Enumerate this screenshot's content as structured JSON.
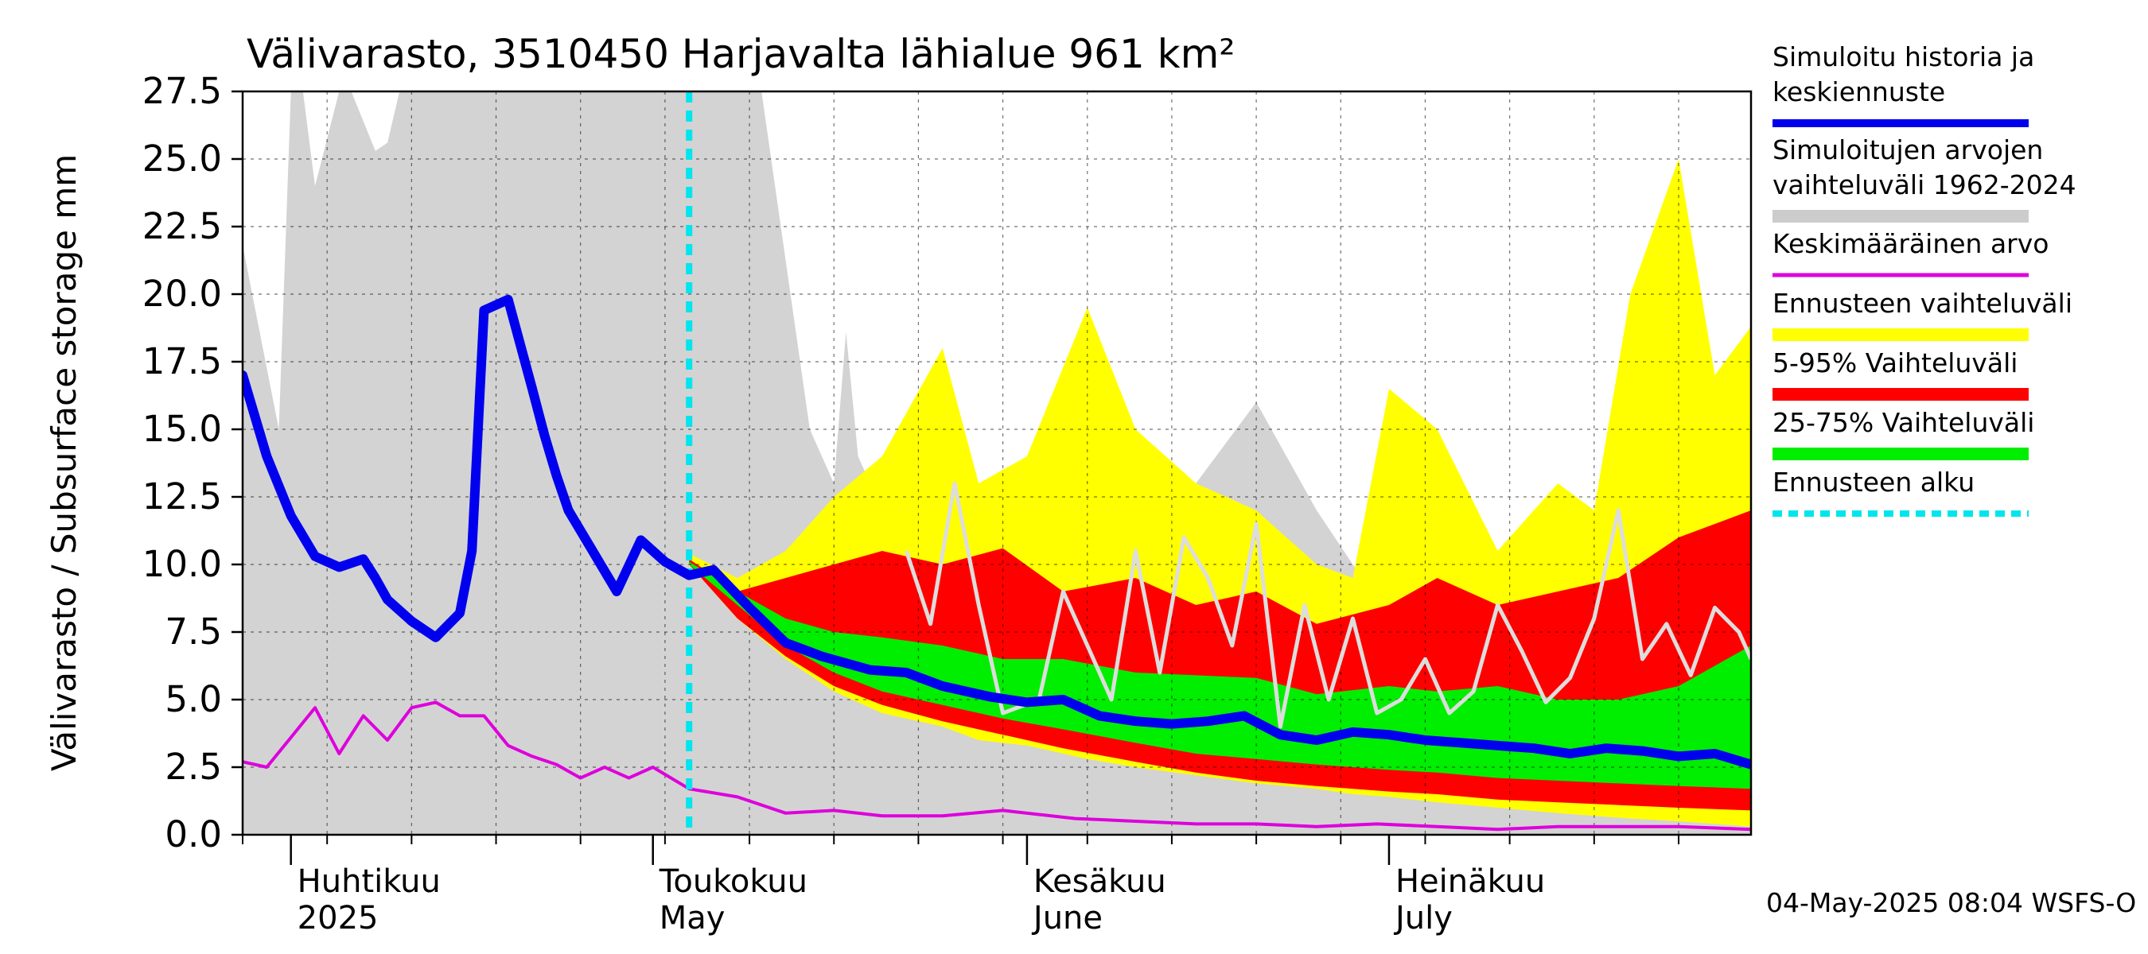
{
  "chart_data": {
    "type": "area",
    "title": "Välivarasto, 3510450 Harjavalta lähialue 961 km²",
    "ylabel": "Välivarasto / Subsurface storage  mm",
    "ylim": [
      0,
      27.5
    ],
    "yticks": [
      "0.0",
      "2.5",
      "5.0",
      "7.5",
      "10.0",
      "12.5",
      "15.0",
      "17.5",
      "20.0",
      "22.5",
      "25.0",
      "27.5"
    ],
    "x_range": [
      "2025-03-28",
      "2025-07-31"
    ],
    "month_labels": [
      {
        "date": "2025-04-01",
        "fi": "Huhtikuu",
        "en": "2025"
      },
      {
        "date": "2025-05-01",
        "fi": "Toukokuu",
        "en": "May"
      },
      {
        "date": "2025-06-01",
        "fi": "Kesäkuu",
        "en": "June"
      },
      {
        "date": "2025-07-01",
        "fi": "Heinäkuu",
        "en": "July"
      }
    ],
    "forecast_start": "2025-05-04",
    "footer": "04-May-2025 08:04 WSFS-O",
    "legend": [
      {
        "label": "Simuloitu historia ja keskiennuste",
        "color": "#0000ee",
        "style": "solid"
      },
      {
        "label": "Simuloitujen arvojen vaihteluväli 1962-2024",
        "color": "#cccccc",
        "style": "solid"
      },
      {
        "label": "Keskimääräinen arvo",
        "color": "#dd00dd",
        "style": "solid"
      },
      {
        "label": "Ennusteen vaihteluväli",
        "color": "#ffff00",
        "style": "solid"
      },
      {
        "label": "5-95% Vaihteluväli",
        "color": "#ff0000",
        "style": "solid"
      },
      {
        "label": "25-75% Vaihteluväli",
        "color": "#00ee00",
        "style": "solid"
      },
      {
        "label": "Ennusteen alku",
        "color": "#00e5ee",
        "style": "dashed"
      }
    ],
    "series": [
      {
        "name": "Simuloitu historia ja keskiennuste",
        "type": "line",
        "color": "#0000ee",
        "x": [
          "2025-03-28",
          "2025-03-30",
          "2025-04-01",
          "2025-04-03",
          "2025-04-05",
          "2025-04-07",
          "2025-04-08",
          "2025-04-09",
          "2025-04-11",
          "2025-04-13",
          "2025-04-15",
          "2025-04-16",
          "2025-04-17",
          "2025-04-19",
          "2025-04-21",
          "2025-04-22",
          "2025-04-23",
          "2025-04-24",
          "2025-04-26",
          "2025-04-28",
          "2025-04-30",
          "2025-05-01",
          "2025-05-02",
          "2025-05-04",
          "2025-05-06",
          "2025-05-09",
          "2025-05-12",
          "2025-05-15",
          "2025-05-19",
          "2025-05-22",
          "2025-05-25",
          "2025-05-29",
          "2025-06-01",
          "2025-06-04",
          "2025-06-07",
          "2025-06-10",
          "2025-06-13",
          "2025-06-16",
          "2025-06-19",
          "2025-06-22",
          "2025-06-25",
          "2025-06-28",
          "2025-07-01",
          "2025-07-04",
          "2025-07-07",
          "2025-07-10",
          "2025-07-13",
          "2025-07-16",
          "2025-07-19",
          "2025-07-22",
          "2025-07-25",
          "2025-07-28",
          "2025-07-31"
        ],
        "y": [
          17.0,
          14.0,
          11.8,
          10.3,
          9.9,
          10.2,
          9.5,
          8.7,
          7.9,
          7.3,
          8.2,
          10.5,
          19.4,
          19.8,
          16.5,
          14.8,
          13.3,
          12.0,
          10.5,
          9.0,
          10.9,
          10.5,
          10.1,
          9.6,
          9.8,
          8.4,
          7.1,
          6.6,
          6.1,
          6.0,
          5.5,
          5.1,
          4.9,
          5.0,
          4.4,
          4.2,
          4.1,
          4.2,
          4.4,
          3.7,
          3.5,
          3.8,
          3.7,
          3.5,
          3.4,
          3.3,
          3.2,
          3.0,
          3.2,
          3.1,
          2.9,
          3.0,
          2.6
        ]
      },
      {
        "name": "Keskimääräinen arvo",
        "type": "line",
        "color": "#dd00dd",
        "x": [
          "2025-03-28",
          "2025-03-30",
          "2025-04-01",
          "2025-04-03",
          "2025-04-05",
          "2025-04-07",
          "2025-04-09",
          "2025-04-11",
          "2025-04-13",
          "2025-04-15",
          "2025-04-17",
          "2025-04-19",
          "2025-04-21",
          "2025-04-23",
          "2025-04-25",
          "2025-04-27",
          "2025-04-29",
          "2025-05-01",
          "2025-05-04",
          "2025-05-08",
          "2025-05-12",
          "2025-05-16",
          "2025-05-20",
          "2025-05-25",
          "2025-05-30",
          "2025-06-05",
          "2025-06-10",
          "2025-06-15",
          "2025-06-20",
          "2025-06-25",
          "2025-06-30",
          "2025-07-05",
          "2025-07-10",
          "2025-07-15",
          "2025-07-20",
          "2025-07-25",
          "2025-07-31"
        ],
        "y": [
          2.7,
          2.5,
          3.6,
          4.7,
          3.0,
          4.4,
          3.5,
          4.7,
          4.9,
          4.4,
          4.4,
          3.3,
          2.9,
          2.6,
          2.1,
          2.5,
          2.1,
          2.5,
          1.7,
          1.4,
          0.8,
          0.9,
          0.7,
          0.7,
          0.9,
          0.6,
          0.5,
          0.4,
          0.4,
          0.3,
          0.4,
          0.3,
          0.2,
          0.3,
          0.3,
          0.3,
          0.2
        ]
      },
      {
        "name": "Simuloitujen arvojen vaihteluväli 1962-2024",
        "type": "band",
        "color": "#d3d3d3",
        "x": [
          "2025-03-28",
          "2025-03-31",
          "2025-04-01",
          "2025-04-02",
          "2025-04-03",
          "2025-04-05",
          "2025-04-06",
          "2025-04-08",
          "2025-04-09",
          "2025-04-10",
          "2025-05-10",
          "2025-05-14",
          "2025-05-16",
          "2025-05-17",
          "2025-05-18",
          "2025-05-20",
          "2025-05-21",
          "2025-05-24",
          "2025-05-25",
          "2025-05-26",
          "2025-05-28",
          "2025-05-30",
          "2025-06-04",
          "2025-06-10",
          "2025-06-20",
          "2025-06-25",
          "2025-07-01",
          "2025-07-10",
          "2025-07-20",
          "2025-07-31"
        ],
        "upper": [
          21.8,
          15.0,
          27.5,
          27.5,
          24.0,
          27.5,
          27.5,
          25.3,
          25.6,
          27.5,
          27.5,
          15.0,
          13.0,
          18.6,
          14.0,
          12.0,
          8.0,
          16.6,
          16.5,
          12.5,
          9.0,
          8.0,
          8.3,
          10.0,
          16.0,
          12.0,
          8.0,
          8.0,
          4.5,
          1.0
        ],
        "lower": [
          0,
          0,
          0,
          0,
          0,
          0,
          0,
          0,
          0,
          0,
          0,
          0,
          0,
          0,
          0,
          0,
          0,
          0,
          0,
          0,
          0,
          0,
          0,
          0,
          0,
          0,
          0,
          0,
          0,
          0
        ]
      },
      {
        "name": "Ennusteen vaihteluväli",
        "type": "band",
        "color": "#ffff00",
        "x": [
          "2025-05-04",
          "2025-05-08",
          "2025-05-12",
          "2025-05-16",
          "2025-05-20",
          "2025-05-25",
          "2025-05-28",
          "2025-06-01",
          "2025-06-06",
          "2025-06-10",
          "2025-06-15",
          "2025-06-20",
          "2025-06-25",
          "2025-06-28",
          "2025-07-01",
          "2025-07-05",
          "2025-07-10",
          "2025-07-15",
          "2025-07-18",
          "2025-07-21",
          "2025-07-25",
          "2025-07-28",
          "2025-07-31"
        ],
        "upper": [
          10.4,
          9.5,
          10.5,
          12.5,
          14.0,
          18.0,
          13.0,
          14.0,
          19.5,
          15.0,
          13.0,
          12.0,
          10.0,
          9.5,
          16.5,
          15.0,
          10.5,
          13.0,
          12.0,
          20.0,
          25.0,
          17.0,
          18.8
        ],
        "lower": [
          10.0,
          8.0,
          6.5,
          5.3,
          4.5,
          4.0,
          3.5,
          3.3,
          2.8,
          2.5,
          2.2,
          1.9,
          1.7,
          1.5,
          1.4,
          1.2,
          1.0,
          0.8,
          0.7,
          0.6,
          0.5,
          0.4,
          0.3
        ]
      },
      {
        "name": "5-95% Vaihteluväli",
        "type": "band",
        "color": "#ff0000",
        "x": [
          "2025-05-04",
          "2025-05-08",
          "2025-05-12",
          "2025-05-16",
          "2025-05-20",
          "2025-05-25",
          "2025-05-30",
          "2025-06-04",
          "2025-06-10",
          "2025-06-15",
          "2025-06-20",
          "2025-06-25",
          "2025-07-01",
          "2025-07-05",
          "2025-07-10",
          "2025-07-15",
          "2025-07-20",
          "2025-07-25",
          "2025-07-31"
        ],
        "upper": [
          10.2,
          9.0,
          9.5,
          10.0,
          10.5,
          10.0,
          10.6,
          9.0,
          9.5,
          8.5,
          9.0,
          7.8,
          8.5,
          9.5,
          8.5,
          9.0,
          9.5,
          11.0,
          12.0
        ],
        "lower": [
          10.0,
          8.0,
          6.6,
          5.5,
          4.8,
          4.2,
          3.7,
          3.2,
          2.7,
          2.3,
          2.0,
          1.8,
          1.6,
          1.5,
          1.3,
          1.2,
          1.1,
          1.0,
          0.9
        ]
      },
      {
        "name": "25-75% Vaihteluväli",
        "type": "band",
        "color": "#00ee00",
        "x": [
          "2025-05-04",
          "2025-05-08",
          "2025-05-12",
          "2025-05-16",
          "2025-05-20",
          "2025-05-25",
          "2025-05-30",
          "2025-06-04",
          "2025-06-10",
          "2025-06-15",
          "2025-06-20",
          "2025-06-25",
          "2025-07-01",
          "2025-07-05",
          "2025-07-10",
          "2025-07-15",
          "2025-07-20",
          "2025-07-25",
          "2025-07-31"
        ],
        "upper": [
          10.1,
          9.0,
          8.0,
          7.5,
          7.3,
          7.0,
          6.5,
          6.5,
          6.0,
          5.9,
          5.8,
          5.2,
          5.5,
          5.3,
          5.5,
          5.0,
          5.0,
          5.5,
          7.0
        ],
        "lower": [
          10.0,
          8.5,
          7.0,
          6.0,
          5.3,
          4.8,
          4.3,
          3.9,
          3.4,
          3.0,
          2.8,
          2.6,
          2.4,
          2.3,
          2.1,
          2.0,
          1.9,
          1.8,
          1.7
        ]
      },
      {
        "name": "Historiallinen vuosi",
        "type": "line",
        "color": "#dddddd",
        "x": [
          "2025-05-22",
          "2025-05-24",
          "2025-05-26",
          "2025-05-28",
          "2025-05-30",
          "2025-06-02",
          "2025-06-04",
          "2025-06-06",
          "2025-06-08",
          "2025-06-10",
          "2025-06-12",
          "2025-06-14",
          "2025-06-16",
          "2025-06-18",
          "2025-06-20",
          "2025-06-22",
          "2025-06-24",
          "2025-06-26",
          "2025-06-28",
          "2025-06-30",
          "2025-07-02",
          "2025-07-04",
          "2025-07-06",
          "2025-07-08",
          "2025-07-10",
          "2025-07-12",
          "2025-07-14",
          "2025-07-16",
          "2025-07-18",
          "2025-07-20",
          "2025-07-22",
          "2025-07-24",
          "2025-07-26",
          "2025-07-28",
          "2025-07-30",
          "2025-07-31"
        ],
        "y": [
          10.5,
          7.8,
          13.0,
          8.5,
          4.5,
          5.0,
          9.0,
          7.0,
          5.0,
          10.5,
          6.0,
          11.0,
          9.5,
          7.0,
          11.5,
          4.0,
          8.5,
          5.0,
          8.0,
          4.5,
          5.0,
          6.5,
          4.5,
          5.3,
          8.5,
          6.8,
          4.9,
          5.8,
          8.0,
          12.0,
          6.5,
          7.8,
          5.9,
          8.4,
          7.5,
          6.5
        ]
      }
    ]
  }
}
